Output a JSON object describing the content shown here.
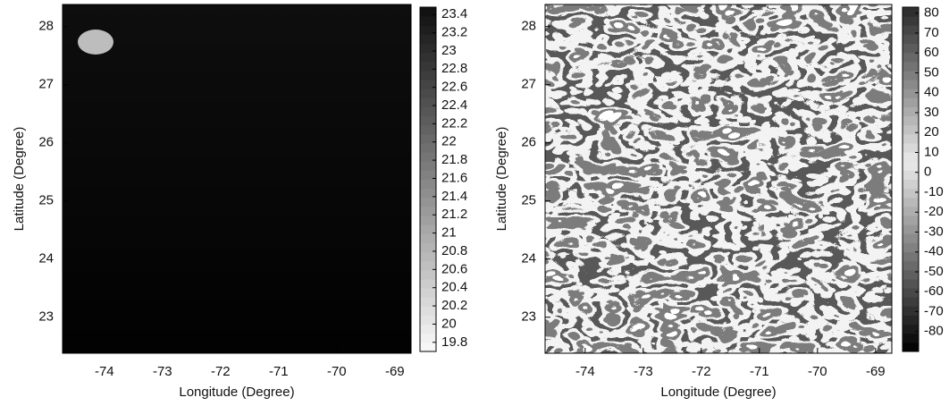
{
  "chart_data": [
    {
      "type": "heatmap",
      "xlabel": "Longitude (Degree)",
      "ylabel": "Latitude (Degree)",
      "xlim": [
        -74.72,
        -68.72
      ],
      "xticks": [
        -74,
        -73,
        -72,
        -71,
        -70,
        -69
      ],
      "ylim": [
        22.38,
        28.38
      ],
      "yticks": [
        23,
        24,
        25,
        26,
        27,
        28
      ],
      "colormap": "gray",
      "clim": [
        19.7,
        23.48
      ],
      "colorbar_ticks": [
        19.8,
        20,
        20.2,
        20.4,
        20.6,
        20.8,
        21,
        21.2,
        21.4,
        21.6,
        21.8,
        22,
        22.2,
        22.4,
        22.6,
        22.8,
        23,
        23.2,
        23.4
      ]
    },
    {
      "type": "heatmap",
      "xlabel": "Longitude (Degree)",
      "ylabel": "Latitude (Degree)",
      "xlim": [
        -74.69,
        -68.72
      ],
      "xticks": [
        -74,
        -73,
        -72,
        -71,
        -70,
        -69
      ],
      "ylim": [
        22.38,
        28.38
      ],
      "yticks": [
        23,
        24,
        25,
        26,
        27,
        28
      ],
      "colormap": "gray-diverging",
      "clim": [
        -90,
        83
      ],
      "colorbar_ticks": [
        -80,
        -70,
        -60,
        -50,
        -40,
        -30,
        -20,
        -10,
        0,
        10,
        20,
        30,
        40,
        50,
        60,
        70,
        80
      ]
    }
  ]
}
